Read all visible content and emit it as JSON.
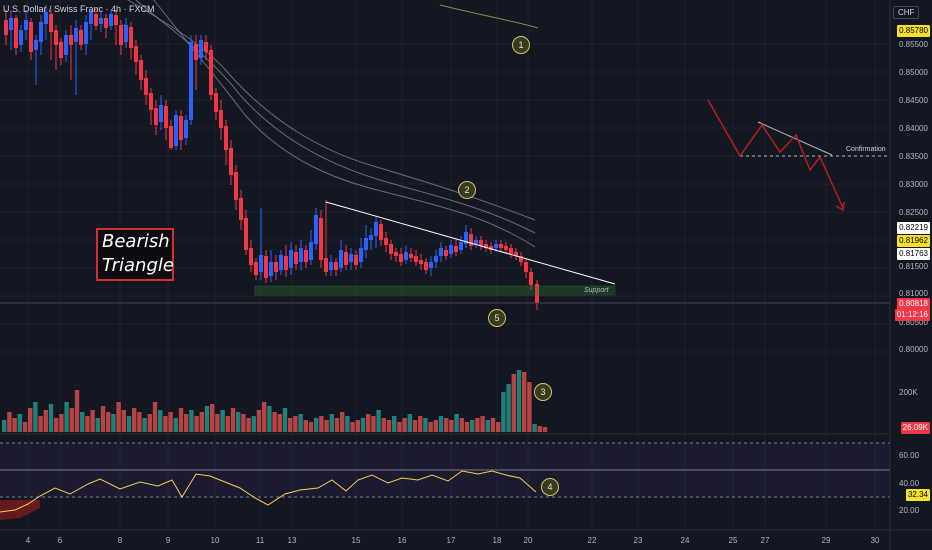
{
  "header": {
    "symbol_title": "U.S. Dollar / Swiss Franc · 4h · FXCM",
    "currency": "CHF"
  },
  "annotations": {
    "pattern_title": [
      "Bearish",
      "Triangle"
    ],
    "support_label": "Support",
    "confirmation_label": "Confirmation",
    "markers": [
      "1",
      "2",
      "3",
      "4",
      "5"
    ]
  },
  "price_axis": {
    "ticks": [
      "0.85500",
      "0.85000",
      "0.84500",
      "0.84000",
      "0.83500",
      "0.83000",
      "0.82500",
      "0.81500",
      "0.81000",
      "0.80500",
      "0.80000"
    ],
    "labels": [
      {
        "text": "0.85780",
        "bg": "#f5e02b",
        "fg": "#000000"
      },
      {
        "text": "0.82219",
        "bg": "#ffffff",
        "fg": "#000000"
      },
      {
        "text": "0.81962",
        "bg": "#f5e02b",
        "fg": "#000000"
      },
      {
        "text": "0.81763",
        "bg": "#ffffff",
        "fg": "#000000"
      },
      {
        "text": "0.80818",
        "bg": "#f23645",
        "fg": "#ffffff"
      },
      {
        "text": "01:12:16",
        "bg": "#f23645",
        "fg": "#ffffff"
      }
    ]
  },
  "volume_axis": {
    "tick": "200K",
    "current": {
      "text": "26.09K",
      "bg": "#f23645",
      "fg": "#ffffff"
    }
  },
  "rsi_axis": {
    "ticks": [
      "60.00",
      "40.00",
      "20.00"
    ],
    "current": {
      "text": "32.34",
      "bg": "#f5e02b",
      "fg": "#000000"
    }
  },
  "time_axis": {
    "ticks": [
      "4",
      "6",
      "8",
      "9",
      "10",
      "11",
      "13",
      "15",
      "16",
      "17",
      "18",
      "20",
      "22",
      "23",
      "24",
      "25",
      "27",
      "29",
      "30"
    ]
  },
  "colors": {
    "background": "#131722",
    "bull": "#2962ff",
    "bear": "#f23645",
    "volume_bull": "#26a69a",
    "volume_bear": "#ef5350",
    "rsi_line": "#f5d04b",
    "support_zone": "#2e7d32",
    "projection": "#b71c1c"
  }
}
